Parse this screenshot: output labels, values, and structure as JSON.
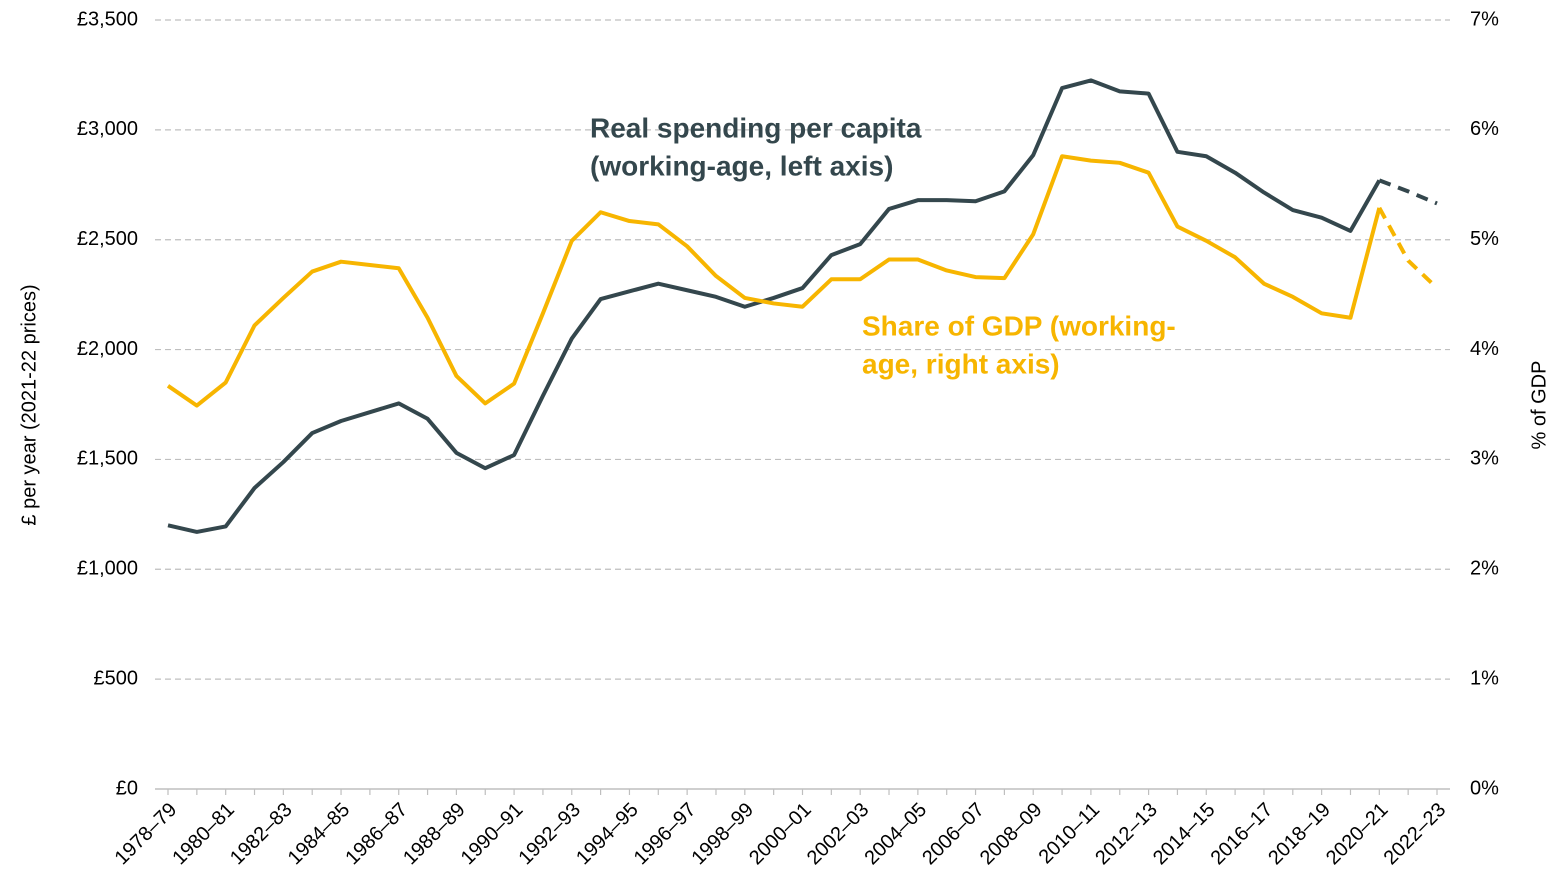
{
  "chart_data": {
    "type": "line",
    "categories": [
      "1978–79",
      null,
      "1980–81",
      null,
      "1982–83",
      null,
      "1984–85",
      null,
      "1986–87",
      null,
      "1988–89",
      null,
      "1990–91",
      null,
      "1992–93",
      null,
      "1994–95",
      null,
      "1996–97",
      null,
      "1998–99",
      null,
      "2000–01",
      null,
      "2002–03",
      null,
      "2004–05",
      null,
      "2006–07",
      null,
      "2008–09",
      null,
      "2010–11",
      null,
      "2012–13",
      null,
      "2014–15",
      null,
      "2016–17",
      null,
      "2018–19",
      null,
      "2020–21",
      null,
      "2022–23"
    ],
    "ylabel": "£ per year (2021-22 prices)",
    "y2label": "% of GDP",
    "ylim": [
      0,
      3500
    ],
    "yticks": [
      {
        "value": 0,
        "label": "£0"
      },
      {
        "value": 500,
        "label": "£500"
      },
      {
        "value": 1000,
        "label": "£1,000"
      },
      {
        "value": 1500,
        "label": "£1,500"
      },
      {
        "value": 2000,
        "label": "£2,000"
      },
      {
        "value": 2500,
        "label": "£2,500"
      },
      {
        "value": 3000,
        "label": "£3,000"
      },
      {
        "value": 3500,
        "label": "£3,500"
      }
    ],
    "y2lim": [
      0,
      7
    ],
    "y2ticks": [
      {
        "value": 0,
        "label": "0%"
      },
      {
        "value": 1,
        "label": "1%"
      },
      {
        "value": 2,
        "label": "2%"
      },
      {
        "value": 3,
        "label": "3%"
      },
      {
        "value": 4,
        "label": "4%"
      },
      {
        "value": 5,
        "label": "5%"
      },
      {
        "value": 6,
        "label": "6%"
      },
      {
        "value": 7,
        "label": "7%"
      }
    ],
    "grid": true,
    "series": [
      {
        "color": "#34474d",
        "axis": "y",
        "dashed_from": 42,
        "annotation": [
          "Real spending per capita",
          "(working-age, left axis)"
        ],
        "values": [
          1200,
          1170,
          1195,
          1370,
          1488,
          1620,
          1675,
          1715,
          1755,
          1685,
          1530,
          1460,
          1520,
          1790,
          2050,
          2230,
          2265,
          2300,
          2270,
          2240,
          2195,
          2235,
          2280,
          2430,
          2480,
          2640,
          2680,
          2680,
          2675,
          2720,
          2885,
          3190,
          3225,
          3175,
          3165,
          2900,
          2880,
          2805,
          2715,
          2635,
          2600,
          2540,
          2770,
          2720,
          2665
        ]
      },
      {
        "color": "#f7b500",
        "axis": "y2",
        "dashed_from": 42,
        "annotation": [
          "Share of GDP (working-",
          "age, right axis)"
        ],
        "values": [
          3.67,
          3.49,
          3.7,
          4.22,
          4.47,
          4.71,
          4.8,
          4.77,
          4.74,
          4.29,
          3.76,
          3.51,
          3.69,
          4.33,
          4.99,
          5.25,
          5.17,
          5.14,
          4.94,
          4.67,
          4.47,
          4.42,
          4.39,
          4.64,
          4.64,
          4.82,
          4.82,
          4.72,
          4.66,
          4.65,
          5.05,
          5.76,
          5.72,
          5.7,
          5.61,
          5.12,
          4.99,
          4.84,
          4.6,
          4.48,
          4.33,
          4.29,
          5.29,
          4.81,
          4.56
        ]
      }
    ]
  }
}
